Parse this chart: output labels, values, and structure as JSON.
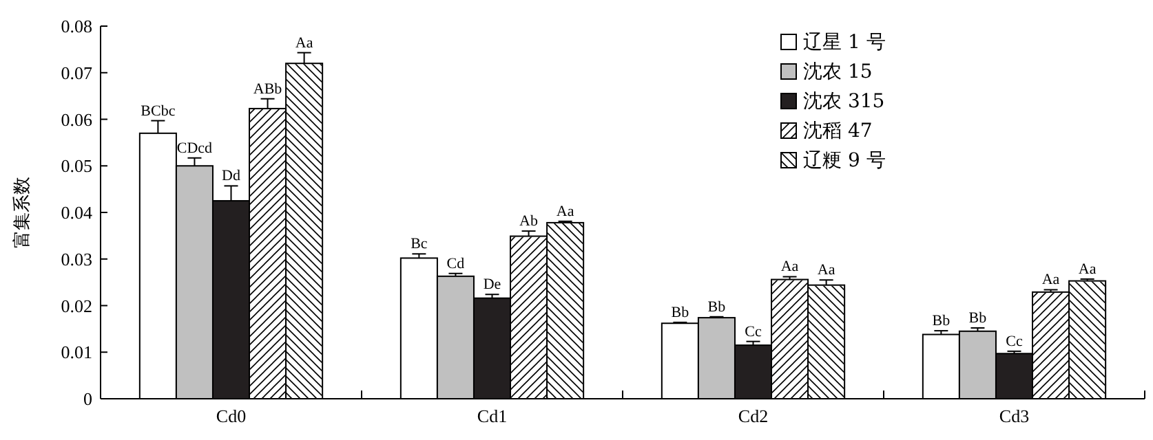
{
  "chart_data": {
    "type": "bar",
    "ylabel": "富集系数",
    "categories": [
      "Cd0",
      "Cd1",
      "Cd2",
      "Cd3"
    ],
    "ylim": [
      0,
      0.08
    ],
    "yticks": [
      0,
      0.01,
      0.02,
      0.03,
      0.04,
      0.05,
      0.06,
      0.07,
      0.08
    ],
    "grid": false,
    "legend": "top right",
    "series": [
      {
        "name": "辽星 1 号",
        "color": "#ffffff",
        "values": [
          0.057,
          0.0302,
          0.0162,
          0.0138
        ],
        "errors": [
          0.0027,
          0.0009,
          0.0002,
          0.0008
        ],
        "value_labels": [
          "BCbc",
          "Bc",
          "Bb",
          "Bb"
        ]
      },
      {
        "name": "沈农 15",
        "color": "#c0c0c0",
        "values": [
          0.05,
          0.0263,
          0.0174,
          0.0145
        ],
        "errors": [
          0.0017,
          0.0006,
          0.0002,
          0.0007
        ],
        "value_labels": [
          "CDcd",
          "Cd",
          "Bb",
          "Bb"
        ]
      },
      {
        "name": "沈农 315",
        "color": "#231f20",
        "values": [
          0.0425,
          0.0216,
          0.0115,
          0.0097
        ],
        "errors": [
          0.0032,
          0.0008,
          0.0008,
          0.0005
        ],
        "value_labels": [
          "Dd",
          "De",
          "Cc",
          "Cc"
        ]
      },
      {
        "name": "沈稻 47",
        "color": "#ffffff",
        "values": [
          0.0623,
          0.0349,
          0.0256,
          0.0229
        ],
        "errors": [
          0.0021,
          0.0011,
          0.0006,
          0.0005
        ],
        "value_labels": [
          "ABb",
          "Ab",
          "Aa",
          "Aa"
        ]
      },
      {
        "name": "辽粳 9 号",
        "color": "#ffffff",
        "values": [
          0.072,
          0.0378,
          0.0244,
          0.0253
        ],
        "errors": [
          0.0023,
          0.0003,
          0.0011,
          0.0004
        ],
        "value_labels": [
          "Aa",
          "Aa",
          "Aa",
          "Aa"
        ]
      }
    ]
  }
}
